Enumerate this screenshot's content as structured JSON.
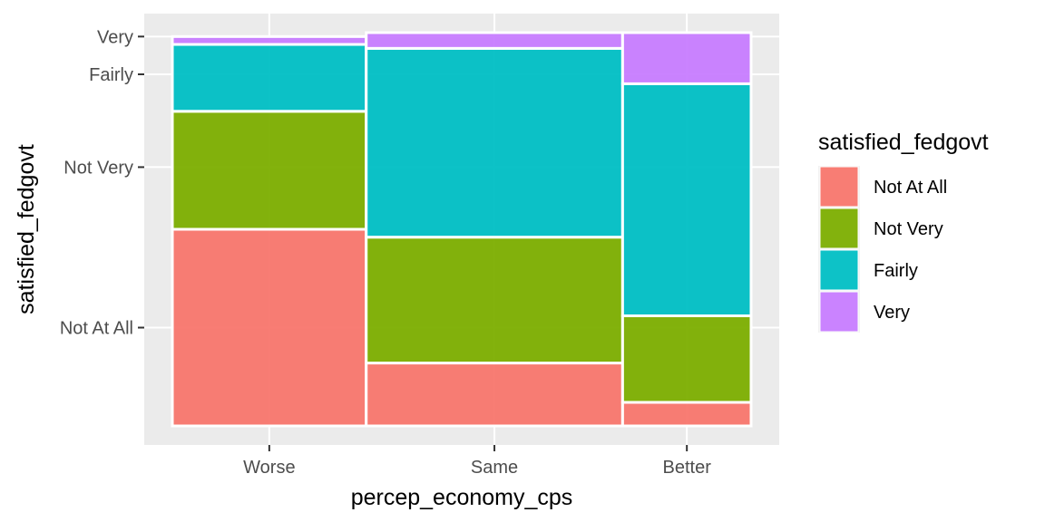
{
  "chart_data": {
    "type": "mosaic",
    "xlabel": "percep_economy_cps",
    "ylabel": "satisfied_fedgovt",
    "x_categories": [
      "Worse",
      "Same",
      "Better"
    ],
    "x_widths": [
      0.335,
      0.443,
      0.222
    ],
    "y_tick_labels": [
      "Not At All",
      "Not Very",
      "Fairly",
      "Very"
    ],
    "y_tick_positions": [
      0.25,
      0.658,
      0.894,
      0.99
    ],
    "ylim": [
      0,
      1
    ],
    "grid": true,
    "legend": {
      "title": "satisfied_fedgovt",
      "position": "right",
      "entries": [
        {
          "name": "Not At All",
          "color": "#F8766D"
        },
        {
          "name": "Not Very",
          "color": "#7CAE00"
        },
        {
          "name": "Fairly",
          "color": "#00BFC4"
        },
        {
          "name": "Very",
          "color": "#C77CFF"
        }
      ]
    },
    "series": [
      {
        "name": "Not At All",
        "values": [
          0.5,
          0.16,
          0.06
        ]
      },
      {
        "name": "Not Very",
        "values": [
          0.3,
          0.32,
          0.22
        ]
      },
      {
        "name": "Fairly",
        "values": [
          0.17,
          0.48,
          0.59
        ]
      },
      {
        "name": "Very",
        "values": [
          0.02,
          0.04,
          0.13
        ]
      }
    ]
  }
}
